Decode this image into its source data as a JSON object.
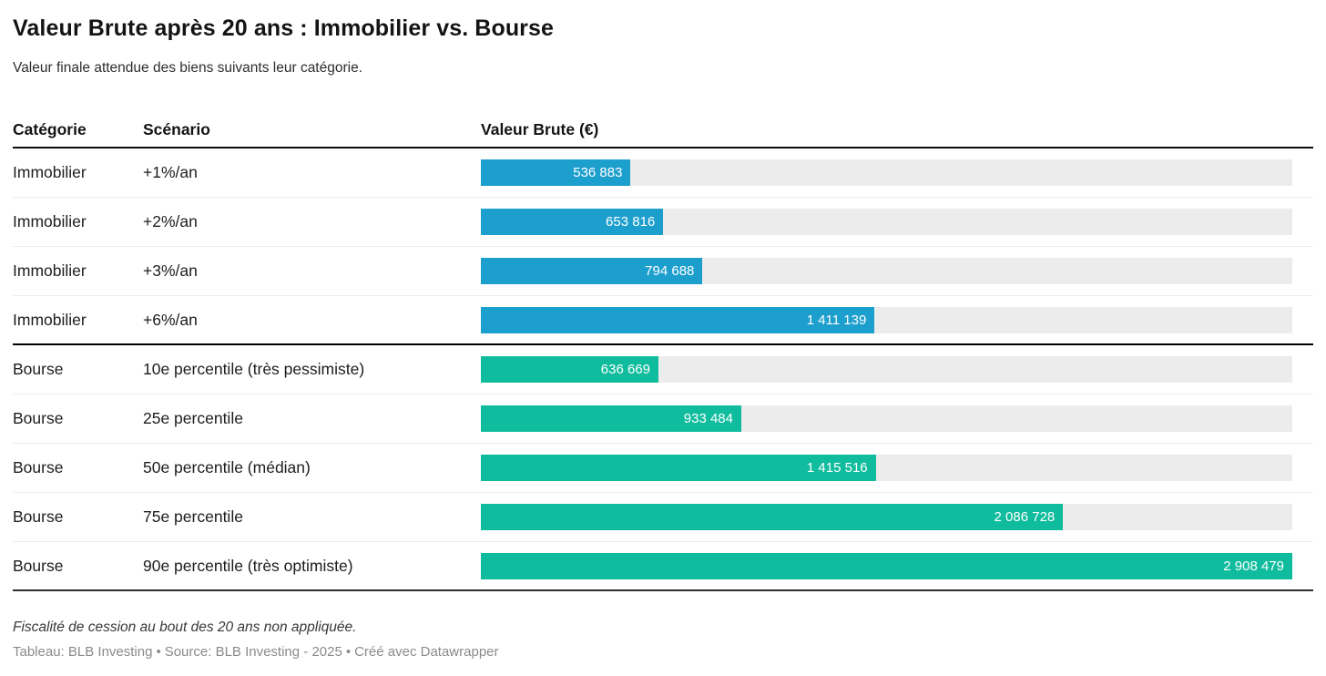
{
  "header": {
    "title": "Valeur Brute après 20 ans : Immobilier vs. Bourse",
    "subtitle": "Valeur finale attendue des biens suivants leur catégorie."
  },
  "table": {
    "columns": [
      "Catégorie",
      "Scénario",
      "Valeur Brute (€)"
    ],
    "rows": [
      {
        "group": "Immobilier",
        "category": "Immobilier",
        "scenario": "+1%/an",
        "value": 536883,
        "value_label": "536 883"
      },
      {
        "group": "Immobilier",
        "category": "Immobilier",
        "scenario": "+2%/an",
        "value": 653816,
        "value_label": "653 816"
      },
      {
        "group": "Immobilier",
        "category": "Immobilier",
        "scenario": "+3%/an",
        "value": 794688,
        "value_label": "794 688"
      },
      {
        "group": "Immobilier",
        "category": "Immobilier",
        "scenario": "+6%/an",
        "value": 1411139,
        "value_label": "1 411 139"
      },
      {
        "group": "Bourse",
        "category": "Bourse",
        "scenario": "10e percentile (très pessimiste)",
        "value": 636669,
        "value_label": "636 669"
      },
      {
        "group": "Bourse",
        "category": "Bourse",
        "scenario": "25e percentile",
        "value": 933484,
        "value_label": "933 484"
      },
      {
        "group": "Bourse",
        "category": "Bourse",
        "scenario": "50e percentile (médian)",
        "value": 1415516,
        "value_label": "1 415 516"
      },
      {
        "group": "Bourse",
        "category": "Bourse",
        "scenario": "75e percentile",
        "value": 2086728,
        "value_label": "2 086 728"
      },
      {
        "group": "Bourse",
        "category": "Bourse",
        "scenario": "90e percentile (très optimiste)",
        "value": 2908479,
        "value_label": "2 908 479"
      }
    ]
  },
  "colors": {
    "immobilier_bar": "#1D9FCE",
    "bourse_bar": "#0FBC9D",
    "bar_track": "#ECECEC",
    "bar_label_text": "#FFFFFF"
  },
  "chart_data": {
    "type": "bar",
    "orientation": "horizontal",
    "title": "Valeur Brute après 20 ans : Immobilier vs. Bourse",
    "subtitle": "Valeur finale attendue des biens suivants leur catégorie.",
    "value_axis_label": "Valeur Brute (€)",
    "xlim": [
      0,
      2908479
    ],
    "grid": false,
    "legend_position": "none",
    "series": [
      {
        "name": "Immobilier",
        "color": "#1D9FCE",
        "points": [
          {
            "label": "+1%/an",
            "value": 536883
          },
          {
            "label": "+2%/an",
            "value": 653816
          },
          {
            "label": "+3%/an",
            "value": 794688
          },
          {
            "label": "+6%/an",
            "value": 1411139
          }
        ]
      },
      {
        "name": "Bourse",
        "color": "#0FBC9D",
        "points": [
          {
            "label": "10e percentile (très pessimiste)",
            "value": 636669
          },
          {
            "label": "25e percentile",
            "value": 933484
          },
          {
            "label": "50e percentile (médian)",
            "value": 1415516
          },
          {
            "label": "75e percentile",
            "value": 2086728
          },
          {
            "label": "90e percentile (très optimiste)",
            "value": 2908479
          }
        ]
      }
    ],
    "annotations": {
      "note": "Fiscalité de cession au bout des 20 ans non appliquée."
    }
  },
  "footer": {
    "note": "Fiscalité de cession au bout des 20 ans non appliquée.",
    "credits": {
      "tableau": "Tableau: BLB Investing",
      "separator": "•",
      "source": "Source: BLB Investing - 2025",
      "created": "Créé avec Datawrapper"
    }
  }
}
